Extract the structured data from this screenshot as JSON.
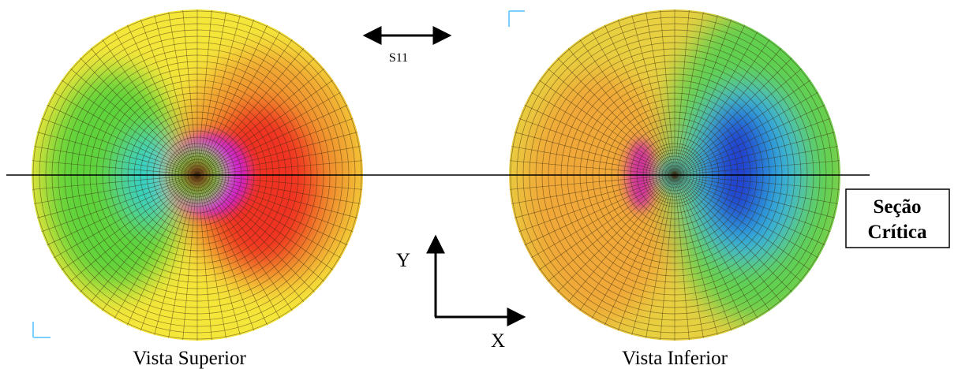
{
  "annotations": {
    "stress_component": "S11",
    "axis_y": "Y",
    "axis_x": "X",
    "critical_section": [
      "Seção",
      "Crítica"
    ]
  },
  "views": [
    {
      "label": "Vista Superior"
    },
    {
      "label": "Vista Inferior"
    }
  ]
}
